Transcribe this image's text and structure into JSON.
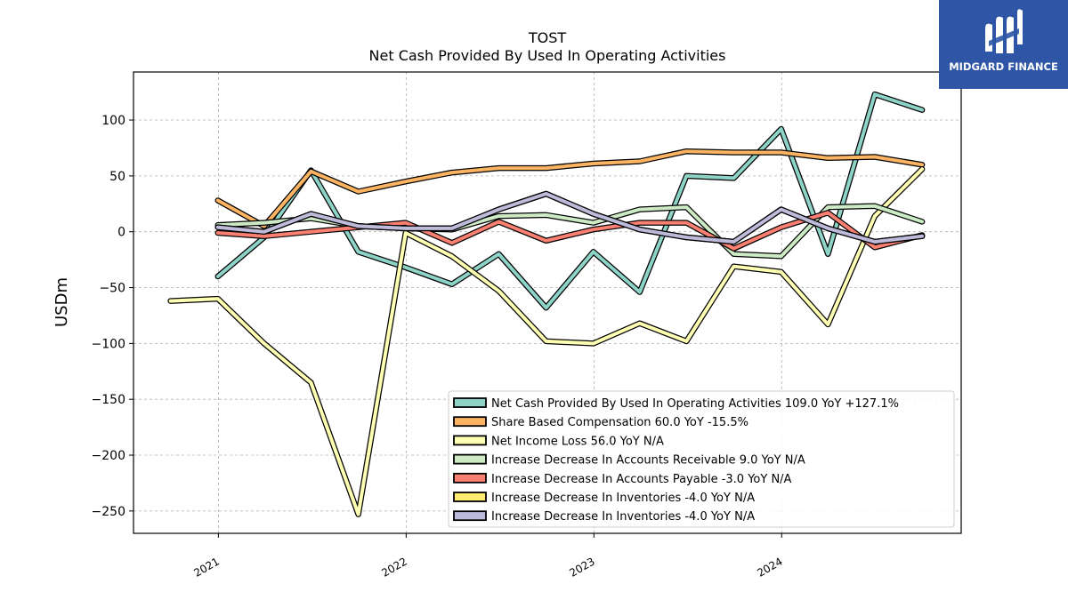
{
  "brand": {
    "name": "MIDGARD FINANCE",
    "logo_icon": "midgard-logo-icon",
    "background": "#2f56a6"
  },
  "chart_data": {
    "type": "line",
    "title": "TOST",
    "subtitle": "Net Cash Provided By Used In Operating Activities",
    "xlabel": "",
    "ylabel": "USDm",
    "xlim": [
      "2020-07-20",
      "2024-12-15"
    ],
    "ylim": [
      -270,
      143
    ],
    "yticks": [
      100,
      50,
      0,
      -50,
      -100,
      -150,
      -200,
      -250
    ],
    "ytick_labels": [
      "100",
      "50",
      "0",
      "−50",
      "−100",
      "−150",
      "−200",
      "−250"
    ],
    "xticks": [
      "2021-01-01",
      "2022-01-01",
      "2023-01-01",
      "2024-01-01"
    ],
    "xtick_labels": [
      "2021",
      "2022",
      "2023",
      "2024"
    ],
    "grid": true,
    "legend_position": "lower-right",
    "series": [
      {
        "name": "Net Cash Provided By Used In Operating Activities  109.0 YoY +127.1%",
        "color": "#8dd3c7",
        "x": [
          "2020-12-31",
          "2021-03-31",
          "2021-06-30",
          "2021-09-30",
          "2021-12-31",
          "2022-03-31",
          "2022-06-30",
          "2022-09-30",
          "2022-12-31",
          "2023-03-31",
          "2023-06-30",
          "2023-09-30",
          "2023-12-31",
          "2024-03-31",
          "2024-06-30",
          "2024-09-30"
        ],
        "values": [
          -40,
          -5,
          55,
          -18,
          -32,
          -47,
          -20,
          -68,
          -18,
          -54,
          50,
          48,
          92,
          -20,
          123,
          109
        ]
      },
      {
        "name": "Share Based Compensation  60.0 YoY -15.5%",
        "color": "#fdb462",
        "x": [
          "2020-12-31",
          "2021-03-31",
          "2021-06-30",
          "2021-09-30",
          "2021-12-31",
          "2022-03-31",
          "2022-06-30",
          "2022-09-30",
          "2022-12-31",
          "2023-03-31",
          "2023-06-30",
          "2023-09-30",
          "2023-12-31",
          "2024-03-31",
          "2024-06-30",
          "2024-09-30"
        ],
        "values": [
          28,
          5,
          54,
          36,
          45,
          53,
          57,
          57,
          61,
          63,
          72,
          71,
          71,
          66,
          67,
          60
        ]
      },
      {
        "name": "Net Income Loss  56.0 YoY N/A",
        "color": "#ffffb3",
        "x": [
          "2020-09-30",
          "2020-12-31",
          "2021-03-31",
          "2021-06-30",
          "2021-09-30",
          "2021-12-31",
          "2022-03-31",
          "2022-06-30",
          "2022-09-30",
          "2022-12-31",
          "2023-03-31",
          "2023-06-30",
          "2023-09-30",
          "2023-12-31",
          "2024-03-31",
          "2024-06-30",
          "2024-09-30"
        ],
        "values": [
          -62,
          -60,
          -100,
          -135,
          -253,
          -1,
          -22,
          -53,
          -98,
          -100,
          -82,
          -98,
          -31,
          -36,
          -83,
          14,
          56
        ]
      },
      {
        "name": "Increase Decrease In Accounts Receivable  9.0 YoY N/A",
        "color": "#ccebc5",
        "x": [
          "2020-12-31",
          "2021-03-31",
          "2021-06-30",
          "2021-09-30",
          "2021-12-31",
          "2022-03-31",
          "2022-06-30",
          "2022-09-30",
          "2022-12-31",
          "2023-03-31",
          "2023-06-30",
          "2023-09-30",
          "2023-12-31",
          "2024-03-31",
          "2024-06-30",
          "2024-09-30"
        ],
        "values": [
          6,
          8,
          12,
          5,
          3,
          2,
          14,
          15,
          8,
          20,
          22,
          -20,
          -22,
          22,
          23,
          9
        ]
      },
      {
        "name": "Increase Decrease In Accounts Payable  -3.0 YoY N/A",
        "color": "#fb8072",
        "x": [
          "2020-12-31",
          "2021-03-31",
          "2021-06-30",
          "2021-09-30",
          "2021-12-31",
          "2022-03-31",
          "2022-06-30",
          "2022-09-30",
          "2022-12-31",
          "2023-03-31",
          "2023-06-30",
          "2023-09-30",
          "2023-12-31",
          "2024-03-31",
          "2024-06-30",
          "2024-09-30"
        ],
        "values": [
          -1,
          -4,
          0,
          4,
          8,
          -10,
          9,
          -8,
          2,
          8,
          8,
          -15,
          4,
          17,
          -14,
          -3
        ]
      },
      {
        "name": "Increase Decrease In Inventories  -4.0 YoY N/A",
        "color": "#ffed6f",
        "x": [
          "2020-12-31",
          "2021-03-31",
          "2021-06-30",
          "2021-09-30",
          "2021-12-31",
          "2022-03-31",
          "2022-06-30",
          "2022-09-30",
          "2022-12-31",
          "2023-03-31",
          "2023-06-30",
          "2023-09-30",
          "2023-12-31",
          "2024-03-31",
          "2024-06-30",
          "2024-09-30"
        ],
        "values": [
          4,
          0,
          16,
          5,
          3,
          3,
          20,
          34,
          16,
          2,
          -5,
          -9,
          20,
          3,
          -9,
          -4
        ]
      },
      {
        "name": "Increase Decrease In Inventories  -4.0 YoY N/A",
        "color": "#bebada",
        "x": [
          "2020-12-31",
          "2021-03-31",
          "2021-06-30",
          "2021-09-30",
          "2021-12-31",
          "2022-03-31",
          "2022-06-30",
          "2022-09-30",
          "2022-12-31",
          "2023-03-31",
          "2023-06-30",
          "2023-09-30",
          "2023-12-31",
          "2024-03-31",
          "2024-06-30",
          "2024-09-30"
        ],
        "values": [
          4,
          0,
          16,
          5,
          3,
          3,
          20,
          34,
          16,
          2,
          -5,
          -9,
          20,
          3,
          -9,
          -4
        ]
      }
    ]
  }
}
